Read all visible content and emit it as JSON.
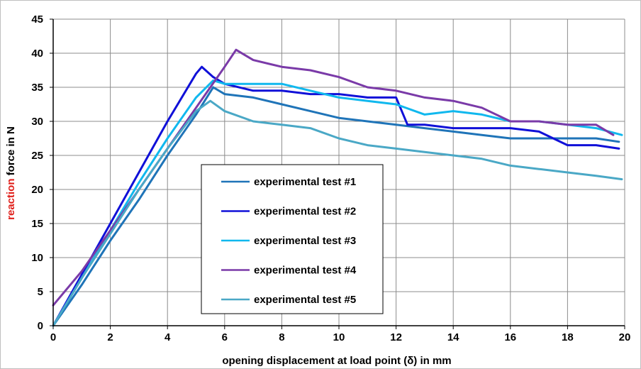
{
  "chart_data": {
    "type": "line",
    "title": "",
    "xlabel": "opening displacement at load point (δ) in mm",
    "ylabel": {
      "highlight": "reaction",
      "rest": " force in N",
      "highlight_color": "#e0201b"
    },
    "xlim": [
      0,
      20
    ],
    "ylim": [
      0,
      45
    ],
    "xticks": [
      "0",
      "2",
      "4",
      "6",
      "8",
      "10",
      "12",
      "14",
      "16",
      "18",
      "20"
    ],
    "yticks": [
      "0",
      "5",
      "10",
      "15",
      "20",
      "25",
      "30",
      "35",
      "40",
      "45"
    ],
    "grid": true,
    "legend_position": "center-left",
    "series": [
      {
        "name": "experimental test #1",
        "color": "#1f74b8",
        "x": [
          0,
          1,
          2,
          3,
          4,
          5,
          5.6,
          6,
          7,
          8,
          9,
          10,
          11,
          12,
          13,
          14,
          15,
          16,
          17,
          18,
          19,
          19.8
        ],
        "y": [
          0,
          6,
          12.5,
          18.5,
          25,
          31,
          35,
          34,
          33.5,
          32.5,
          31.5,
          30.5,
          30,
          29.5,
          29,
          28.5,
          28,
          27.5,
          27.5,
          27.5,
          27.5,
          27
        ]
      },
      {
        "name": "experimental test #2",
        "color": "#1010d8",
        "x": [
          0,
          1,
          2,
          3,
          4,
          5,
          5.2,
          5.6,
          6,
          7,
          8,
          9,
          10,
          11,
          12,
          12.4,
          13,
          14,
          15,
          16,
          17,
          18,
          19,
          19.8
        ],
        "y": [
          0,
          7.5,
          15,
          22.5,
          30,
          37,
          38,
          36.5,
          35.5,
          34.5,
          34.5,
          34,
          34,
          33.5,
          33.5,
          29.5,
          29.5,
          29,
          29,
          29,
          28.5,
          26.5,
          26.5,
          26
        ]
      },
      {
        "name": "experimental test #3",
        "color": "#10b8ee",
        "x": [
          0,
          1,
          2,
          3,
          4,
          5,
          5.6,
          6,
          7,
          8,
          9,
          10,
          11,
          12,
          13,
          14,
          15,
          16,
          17,
          18,
          19,
          19.9
        ],
        "y": [
          0,
          7,
          14,
          21,
          27.5,
          33.5,
          36,
          35.5,
          35.5,
          35.5,
          34.5,
          33.5,
          33,
          32.5,
          31,
          31.5,
          31,
          30,
          30,
          29.5,
          29,
          28
        ]
      },
      {
        "name": "experimental test #4",
        "color": "#7a3aa8",
        "x": [
          0,
          1,
          2,
          3,
          4,
          5,
          6,
          6.4,
          7,
          8,
          9,
          10,
          11,
          12,
          13,
          14,
          15,
          16,
          17,
          18,
          19,
          19.6
        ],
        "y": [
          3,
          8,
          14,
          20,
          26,
          32,
          38,
          40.5,
          39,
          38,
          37.5,
          36.5,
          35,
          34.5,
          33.5,
          33,
          32,
          30,
          30,
          29.5,
          29.5,
          28
        ]
      },
      {
        "name": "experimental test #5",
        "color": "#4aa8c6",
        "x": [
          0,
          1,
          2,
          3,
          4,
          5,
          5.5,
          6,
          7,
          8,
          9,
          10,
          11,
          12,
          13,
          14,
          15,
          16,
          17,
          18,
          19,
          19.9
        ],
        "y": [
          0,
          7,
          13.5,
          20,
          26,
          31.5,
          33,
          31.5,
          30,
          29.5,
          29,
          27.5,
          26.5,
          26,
          25.5,
          25,
          24.5,
          23.5,
          23,
          22.5,
          22,
          21.5
        ]
      }
    ]
  }
}
